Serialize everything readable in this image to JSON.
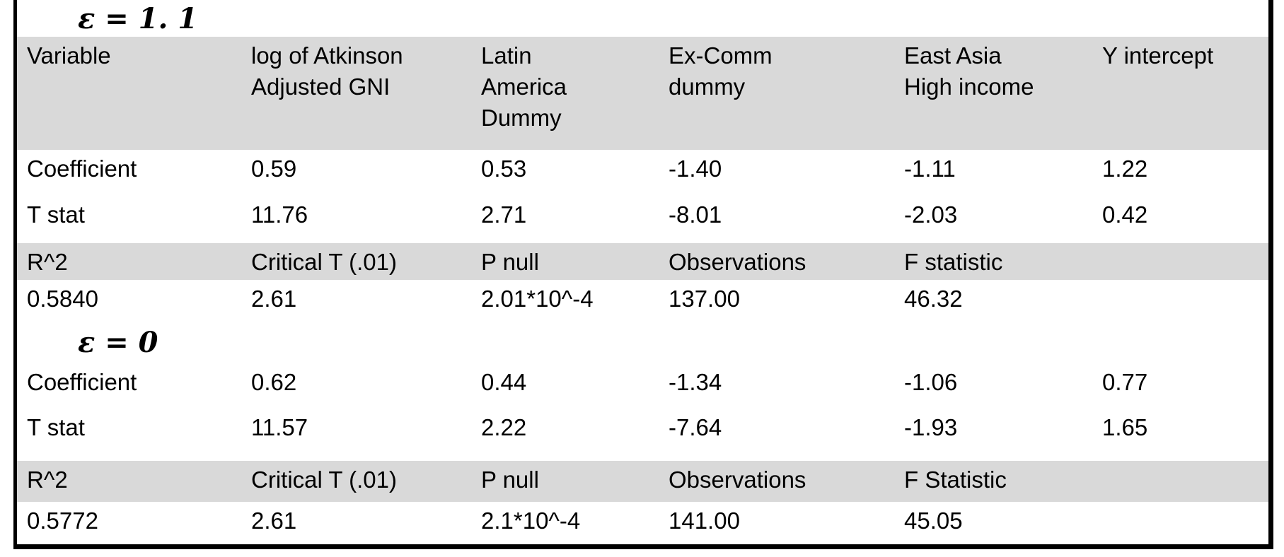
{
  "document": {
    "kind": "regression-results-table"
  },
  "colors": {
    "shaded_row_bg": "#d9d9d9",
    "border": "#000000",
    "background": "#ffffff",
    "text": "#000000"
  },
  "chart_data": {
    "type": "table",
    "sections": [
      {
        "title": "ε = 1. 1",
        "columns": [
          "Variable",
          "log of Atkinson Adjusted GNI",
          "Latin America Dummy",
          "Ex-Comm dummy",
          "East Asia High income",
          "Y intercept"
        ],
        "rows": [
          {
            "label": "Coefficient",
            "values": [
              0.59,
              0.53,
              -1.4,
              -1.11,
              1.22
            ]
          },
          {
            "label": "T stat",
            "values": [
              11.76,
              2.71,
              -8.01,
              -2.03,
              0.42
            ]
          }
        ],
        "summary": {
          "R^2": 0.584,
          "Critical T (.01)": 2.61,
          "P null": "2.01*10^-4",
          "Observations": 137.0,
          "F statistic": 46.32
        }
      },
      {
        "title": "ε = 0",
        "rows": [
          {
            "label": "Coefficient",
            "values": [
              0.62,
              0.44,
              -1.34,
              -1.06,
              0.77
            ]
          },
          {
            "label": "T stat",
            "values": [
              11.57,
              2.22,
              -7.64,
              -1.93,
              1.65
            ]
          }
        ],
        "summary": {
          "R^2": 0.5772,
          "Critical T (.01)": 2.61,
          "P null": "2.1*10^-4",
          "Observations": 141.0,
          "F Statistic": 45.05
        }
      }
    ]
  },
  "table": {
    "section1": {
      "title": "ε = 1. 1",
      "header": [
        [
          "Variable"
        ],
        [
          "log of Atkinson",
          "Adjusted GNI"
        ],
        [
          "Latin",
          "America",
          "Dummy"
        ],
        [
          "Ex-Comm",
          "dummy"
        ],
        [
          "East Asia",
          "High income"
        ],
        [
          "Y intercept"
        ]
      ],
      "coefficient": {
        "label": "Coefficient",
        "values": [
          "0.59",
          "0.53",
          "-1.40",
          "-1.11",
          "1.22"
        ]
      },
      "t_stat": {
        "label": "T stat",
        "values": [
          "11.76",
          "2.71",
          "-8.01",
          "-2.03",
          "0.42"
        ]
      },
      "stat_header": [
        "R^2",
        "Critical T (.01)",
        "P null",
        "Observations",
        "F statistic"
      ],
      "stat_values": [
        "0.5840",
        "2.61",
        "2.01*10^-4",
        "137.00",
        "46.32"
      ]
    },
    "section2": {
      "title": "ε = 0",
      "coefficient": {
        "label": "Coefficient",
        "values": [
          "0.62",
          "0.44",
          "-1.34",
          "-1.06",
          "0.77"
        ]
      },
      "t_stat": {
        "label": "T stat",
        "values": [
          "11.57",
          "2.22",
          "-7.64",
          "-1.93",
          "1.65"
        ]
      },
      "stat_header": [
        "R^2",
        "Critical T (.01)",
        "P null",
        "Observations",
        "F Statistic"
      ],
      "stat_values": [
        "0.5772",
        "2.61",
        "2.1*10^-4",
        "141.00",
        "45.05"
      ]
    }
  }
}
